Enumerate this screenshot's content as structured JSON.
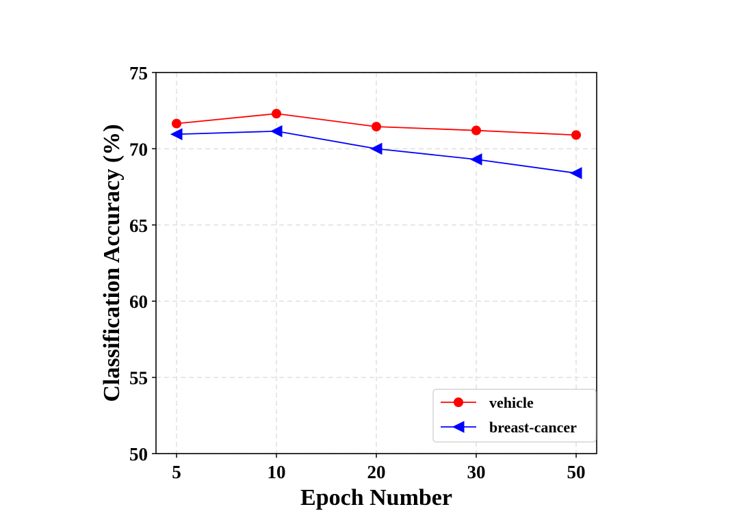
{
  "chart_data": {
    "type": "line",
    "xlabel": "Epoch Number",
    "ylabel": "Classification Accuracy (%)",
    "categories": [
      "5",
      "10",
      "20",
      "30",
      "50"
    ],
    "ylim": [
      50,
      75
    ],
    "yticks": [
      "50",
      "55",
      "60",
      "65",
      "70",
      "75"
    ],
    "grid": "dashed",
    "legend_position": "lower-right",
    "series": [
      {
        "name": "vehicle",
        "color": "#ff0000",
        "marker": "circle",
        "values": [
          71.65,
          72.3,
          71.45,
          71.2,
          70.9
        ]
      },
      {
        "name": "breast-cancer",
        "color": "#0000ff",
        "marker": "triangle-left",
        "values": [
          70.95,
          71.15,
          70.0,
          69.3,
          68.4
        ]
      }
    ]
  }
}
